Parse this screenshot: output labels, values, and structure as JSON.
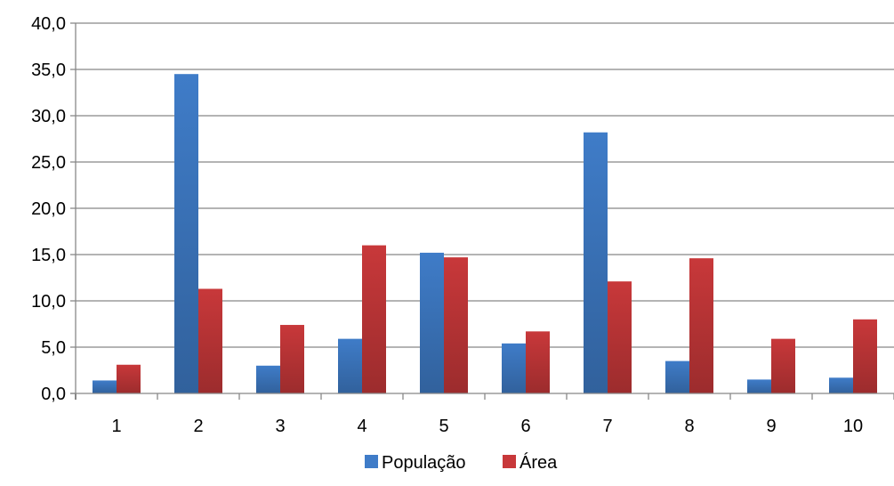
{
  "chart_data": {
    "type": "bar",
    "categories": [
      "1",
      "2",
      "3",
      "4",
      "5",
      "6",
      "7",
      "8",
      "9",
      "10"
    ],
    "series": [
      {
        "name": "População",
        "color": "#3f7cc8",
        "values": [
          1.4,
          34.5,
          3.0,
          5.9,
          15.2,
          5.4,
          28.2,
          3.5,
          1.5,
          1.7
        ]
      },
      {
        "name": "Área",
        "color": "#c8383a",
        "values": [
          3.1,
          11.3,
          7.4,
          16.0,
          14.7,
          6.7,
          12.1,
          14.6,
          5.9,
          8.0
        ]
      }
    ],
    "ylim": [
      0,
      40
    ],
    "y_ticks": [
      "0,0",
      "5,0",
      "10,0",
      "15,0",
      "20,0",
      "25,0",
      "30,0",
      "35,0",
      "40,0"
    ],
    "grid": "horizontal",
    "legend_position": "bottom",
    "title": "",
    "xlabel": "",
    "ylabel": ""
  }
}
